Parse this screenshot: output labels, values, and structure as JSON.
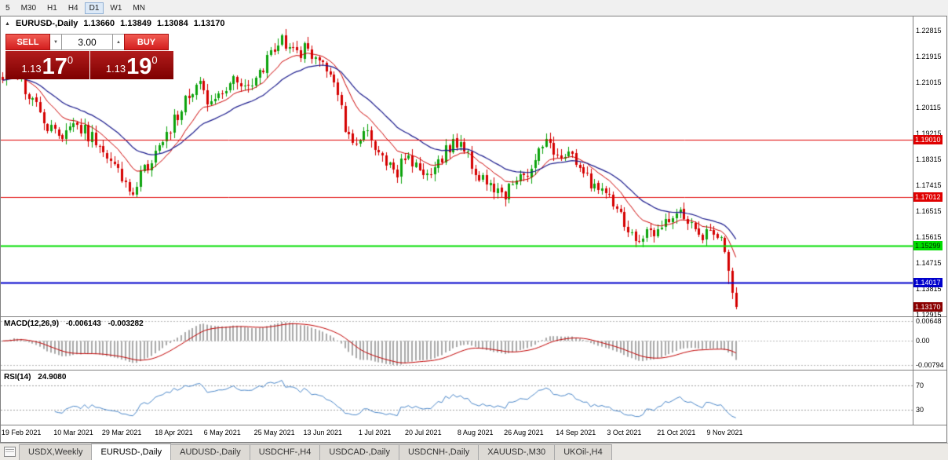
{
  "toolbar": {
    "timeframes": [
      "5",
      "M30",
      "H1",
      "H4",
      "D1",
      "W1",
      "MN"
    ],
    "active_timeframe": "D1"
  },
  "header": {
    "collapse_icon": "▲",
    "symbol_title": "EURUSD-,Daily",
    "open": "1.13660",
    "high": "1.13849",
    "low": "1.13084",
    "close": "1.13170"
  },
  "trade_panel": {
    "sell_label": "SELL",
    "buy_label": "BUY",
    "volume": "3.00",
    "volume_down_icon": "▼",
    "volume_up_icon": "▲",
    "sell_price_prefix": "1.13",
    "sell_price_big": "17",
    "sell_price_sup": "0",
    "buy_price_prefix": "1.13",
    "buy_price_big": "19",
    "buy_price_sup": "0"
  },
  "price_axis": {
    "ticks": [
      "1.22815",
      "1.21915",
      "1.21015",
      "1.20115",
      "1.19215",
      "1.18315",
      "1.17415",
      "1.16515",
      "1.15615",
      "1.14715",
      "1.13815",
      "1.12915"
    ]
  },
  "levels": [
    {
      "label": "1.19010",
      "value": 1.1901,
      "color": "#E00000",
      "width": 1
    },
    {
      "label": "1.17012",
      "value": 1.17012,
      "color": "#E00000",
      "width": 1
    },
    {
      "label": "1.15299",
      "value": 1.15299,
      "color": "#00DD00",
      "width": 2
    },
    {
      "label": "1.14017",
      "value": 1.14017,
      "color": "#0000CC",
      "width": 2
    }
  ],
  "current_price": {
    "label": "1.13170",
    "value": 1.1317,
    "color": "#8B0000"
  },
  "macd_panel": {
    "name": "MACD(12,26,9)",
    "value_main": "-0.006143",
    "value_signal": "-0.003282",
    "axis_ticks": [
      {
        "label": "0.00648",
        "value": 0.00648
      },
      {
        "label": "0.00",
        "value": 0
      },
      {
        "label": "-0.00794",
        "value": -0.00794
      }
    ]
  },
  "rsi_panel": {
    "name": "RSI(14)",
    "value": "24.9080",
    "axis_ticks": [
      {
        "label": "70",
        "value": 70
      },
      {
        "label": "30",
        "value": 30
      }
    ]
  },
  "time_axis": {
    "labels": [
      {
        "text": "19 Feb 2021",
        "index": 5
      },
      {
        "text": "10 Mar 2021",
        "index": 19
      },
      {
        "text": "29 Mar 2021",
        "index": 32
      },
      {
        "text": "18 Apr 2021",
        "index": 46
      },
      {
        "text": "6 May 2021",
        "index": 59
      },
      {
        "text": "25 May 2021",
        "index": 73
      },
      {
        "text": "13 Jun 2021",
        "index": 86
      },
      {
        "text": "1 Jul 2021",
        "index": 100
      },
      {
        "text": "20 Jul 2021",
        "index": 113
      },
      {
        "text": "8 Aug 2021",
        "index": 127
      },
      {
        "text": "26 Aug 2021",
        "index": 140
      },
      {
        "text": "14 Sep 2021",
        "index": 154
      },
      {
        "text": "3 Oct 2021",
        "index": 167
      },
      {
        "text": "21 Oct 2021",
        "index": 181
      },
      {
        "text": "9 Nov 2021",
        "index": 194
      }
    ]
  },
  "tabs": [
    {
      "label": "USDX,Weekly",
      "active": false
    },
    {
      "label": "EURUSD-,Daily",
      "active": true
    },
    {
      "label": "AUDUSD-,Daily",
      "active": false
    },
    {
      "label": "USDCHF-,H4",
      "active": false
    },
    {
      "label": "USDCAD-,Daily",
      "active": false
    },
    {
      "label": "USDCNH-,Daily",
      "active": false
    },
    {
      "label": "XAUUSD-,M30",
      "active": false
    },
    {
      "label": "UKOil-,H4",
      "active": false
    }
  ],
  "chart_data": {
    "type": "candlestick",
    "symbol": "EURUSD-",
    "timeframe": "Daily",
    "ohlc_last": {
      "open": 1.1366,
      "high": 1.13849,
      "low": 1.13084,
      "close": 1.1317
    },
    "price_range": [
      1.1285,
      1.233
    ],
    "slots": 245,
    "candles_count": 198,
    "noise": 0.0026,
    "wick": 0.0022,
    "trend_points": [
      [
        0,
        1.2125
      ],
      [
        3,
        1.215
      ],
      [
        6,
        1.2085
      ],
      [
        9,
        1.201
      ],
      [
        12,
        1.1945
      ],
      [
        14,
        1.1915
      ],
      [
        17,
        1.193
      ],
      [
        19,
        1.1975
      ],
      [
        21,
        1.1945
      ],
      [
        24,
        1.1905
      ],
      [
        27,
        1.188
      ],
      [
        30,
        1.1815
      ],
      [
        33,
        1.1745
      ],
      [
        35,
        1.173
      ],
      [
        37,
        1.1775
      ],
      [
        40,
        1.183
      ],
      [
        43,
        1.1905
      ],
      [
        46,
        1.1965
      ],
      [
        49,
        1.2035
      ],
      [
        52,
        1.209
      ],
      [
        54,
        1.207
      ],
      [
        56,
        1.2025
      ],
      [
        58,
        1.204
      ],
      [
        61,
        1.2085
      ],
      [
        63,
        1.2125
      ],
      [
        65,
        1.2095
      ],
      [
        67,
        1.2075
      ],
      [
        70,
        1.216
      ],
      [
        73,
        1.223
      ],
      [
        75,
        1.225
      ],
      [
        77,
        1.2215
      ],
      [
        79,
        1.2195
      ],
      [
        81,
        1.2225
      ],
      [
        84,
        1.2185
      ],
      [
        87,
        1.2135
      ],
      [
        89,
        1.2115
      ],
      [
        91,
        1.1995
      ],
      [
        93,
        1.1905
      ],
      [
        95,
        1.1865
      ],
      [
        98,
        1.193
      ],
      [
        100,
        1.186
      ],
      [
        103,
        1.1825
      ],
      [
        106,
        1.1795
      ],
      [
        109,
        1.1845
      ],
      [
        111,
        1.181
      ],
      [
        113,
        1.1775
      ],
      [
        116,
        1.1795
      ],
      [
        119,
        1.1855
      ],
      [
        122,
        1.189
      ],
      [
        125,
        1.1835
      ],
      [
        128,
        1.1765
      ],
      [
        131,
        1.1735
      ],
      [
        134,
        1.17
      ],
      [
        137,
        1.1735
      ],
      [
        140,
        1.177
      ],
      [
        143,
        1.1825
      ],
      [
        146,
        1.1885
      ],
      [
        149,
        1.1865
      ],
      [
        152,
        1.1845
      ],
      [
        155,
        1.1805
      ],
      [
        158,
        1.1755
      ],
      [
        161,
        1.173
      ],
      [
        164,
        1.1685
      ],
      [
        167,
        1.1605
      ],
      [
        170,
        1.156
      ],
      [
        173,
        1.1575
      ],
      [
        176,
        1.1595
      ],
      [
        179,
        1.164
      ],
      [
        182,
        1.1655
      ],
      [
        185,
        1.1615
      ],
      [
        187,
        1.1565
      ],
      [
        189,
        1.1585
      ],
      [
        191,
        1.1575
      ],
      [
        193,
        1.156
      ],
      [
        194,
        1.151
      ],
      [
        195,
        1.1442
      ],
      [
        196,
        1.1366
      ],
      [
        197,
        1.1317
      ]
    ],
    "pinned_closes": [
      [
        194,
        1.151
      ],
      [
        195,
        1.1442
      ],
      [
        196,
        1.1366
      ]
    ],
    "pinned_lows": [
      [
        195,
        1.1396
      ]
    ],
    "last_candle": {
      "open": 1.1366,
      "high": 1.13849,
      "low": 1.13084,
      "close": 1.1317
    },
    "indicators": {
      "ma_fast": {
        "type": "ema",
        "period": 12,
        "color": "#CC0000"
      },
      "ma_slow": {
        "type": "ema",
        "period": 26,
        "color": "#1A1A8C"
      },
      "macd": {
        "fast": 12,
        "slow": 26,
        "signal": 9,
        "range": [
          -0.0095,
          0.0078
        ],
        "histogram_color": "#A9A9A9",
        "signal_color": "#C00000"
      },
      "rsi": {
        "period": 14,
        "range": [
          5,
          95
        ],
        "color": "#4A86C8",
        "levels": [
          70,
          30
        ]
      }
    },
    "colors": {
      "bull": "#0CA30C",
      "bear": "#D40000",
      "background": "#FFFFFF",
      "grid_dash": "#B8B8B8"
    }
  }
}
